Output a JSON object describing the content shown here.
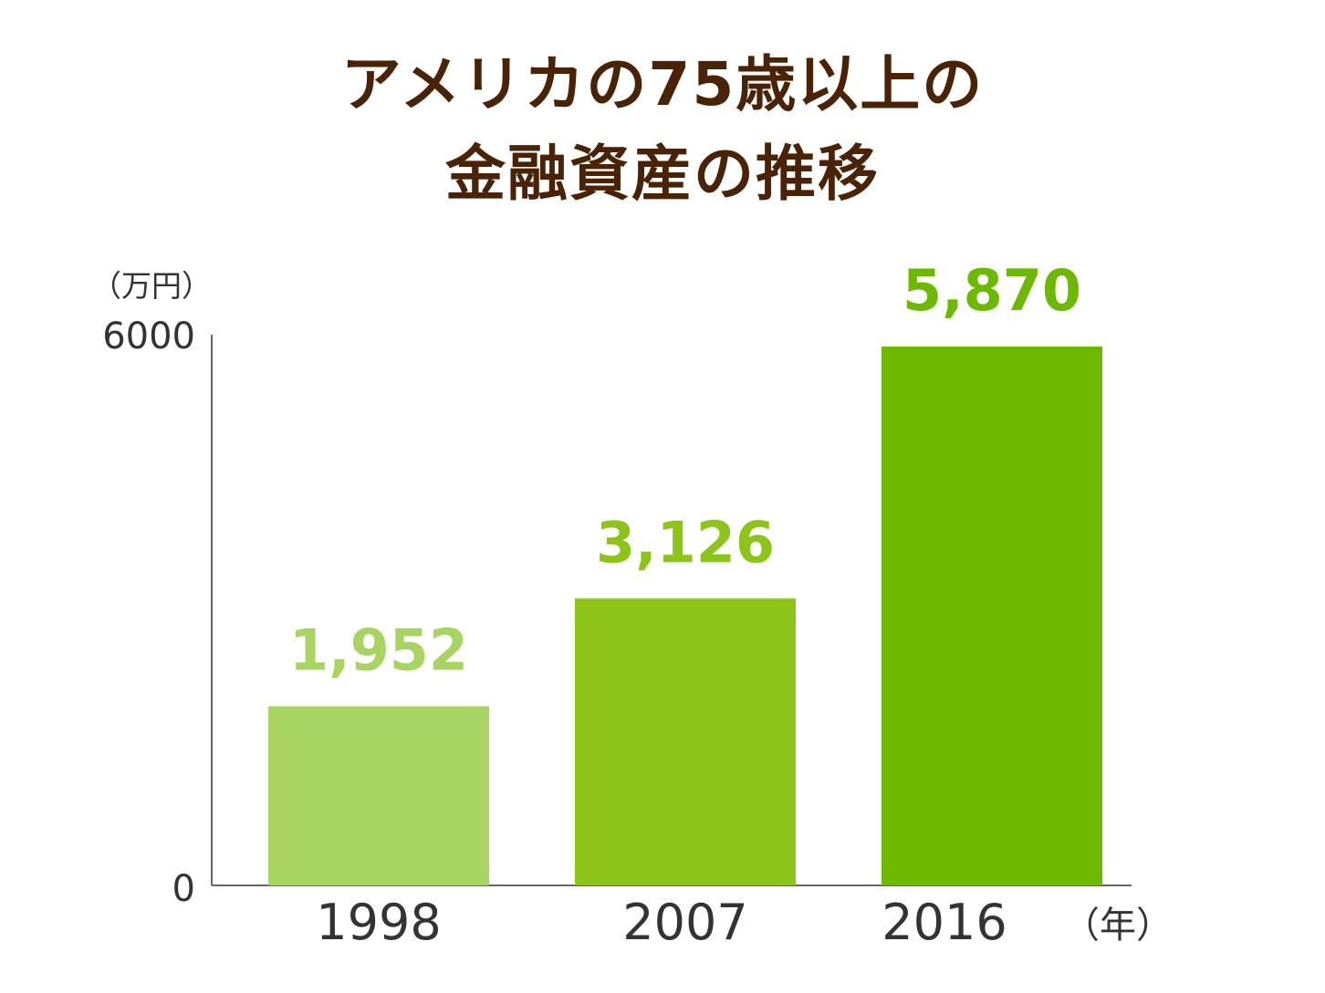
{
  "title_lines": [
    "アメリカの75歳以上の",
    "金融資産の推移"
  ],
  "chart_data": {
    "type": "bar",
    "title": "アメリカの75歳以上の金融資産の推移",
    "categories": [
      "1998",
      "2007",
      "2016"
    ],
    "values": [
      1952,
      3126,
      5870
    ],
    "value_labels": [
      "1,952",
      "3,126",
      "5,870"
    ],
    "ylabel": "（万円）",
    "xlabel": "（年）",
    "ylim": [
      0,
      6000
    ],
    "yticks": [
      0,
      6000
    ],
    "grid": false,
    "legend": "none",
    "bar_colors": [
      "#a8d461",
      "#8cc41a",
      "#6db800"
    ],
    "title_color": "#4a2306",
    "axis_text_color": "#333333",
    "axis_line_color": "#666666"
  }
}
